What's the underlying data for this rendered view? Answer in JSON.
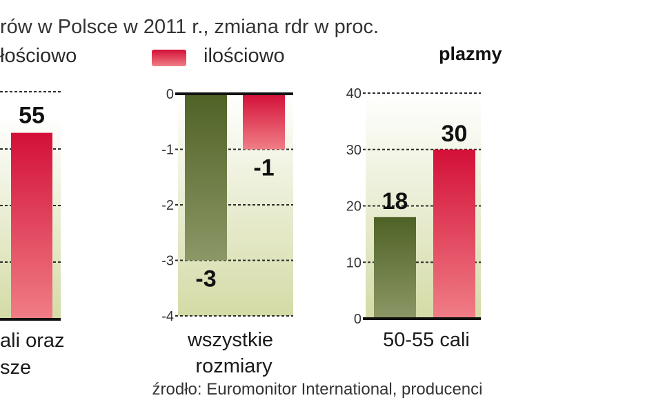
{
  "chart_data": {
    "title": "rów w Polsce w 2011 r., zmiana rdr w proc.",
    "legend": [
      {
        "label": "łościowo",
        "color": "#556b2f"
      },
      {
        "label": "ilościowo",
        "color": "#d9243a"
      }
    ],
    "source": "źrodło: Euromonitor International, producenci",
    "panels": [
      {
        "type": "bar",
        "title": "",
        "categories_label": [
          "ali oraz",
          "sze"
        ],
        "ticks": [],
        "ylim": [
          0,
          60
        ],
        "series": [
          {
            "name": "ilościowo",
            "values": [
              55
            ],
            "labels": [
              "55"
            ]
          }
        ]
      },
      {
        "type": "bar",
        "title": "",
        "categories_label": [
          "wszystkie",
          "rozmiary"
        ],
        "ticks": [
          "0",
          "-1",
          "-2",
          "-3",
          "-4"
        ],
        "ylim": [
          -4,
          0
        ],
        "series": [
          {
            "name": "łościowo",
            "values": [
              -3
            ],
            "labels": [
              "-3"
            ]
          },
          {
            "name": "ilościowo",
            "values": [
              -1
            ],
            "labels": [
              "-1"
            ]
          }
        ]
      },
      {
        "type": "bar",
        "title": "plazmy",
        "categories_label": [
          "50-55 cali",
          ""
        ],
        "ticks": [
          "40",
          "30",
          "20",
          "10",
          "0"
        ],
        "ylim": [
          0,
          40
        ],
        "series": [
          {
            "name": "łościowo",
            "values": [
              18
            ],
            "labels": [
              "18"
            ]
          },
          {
            "name": "ilościowo",
            "values": [
              30
            ],
            "labels": [
              "30"
            ]
          }
        ]
      }
    ]
  }
}
